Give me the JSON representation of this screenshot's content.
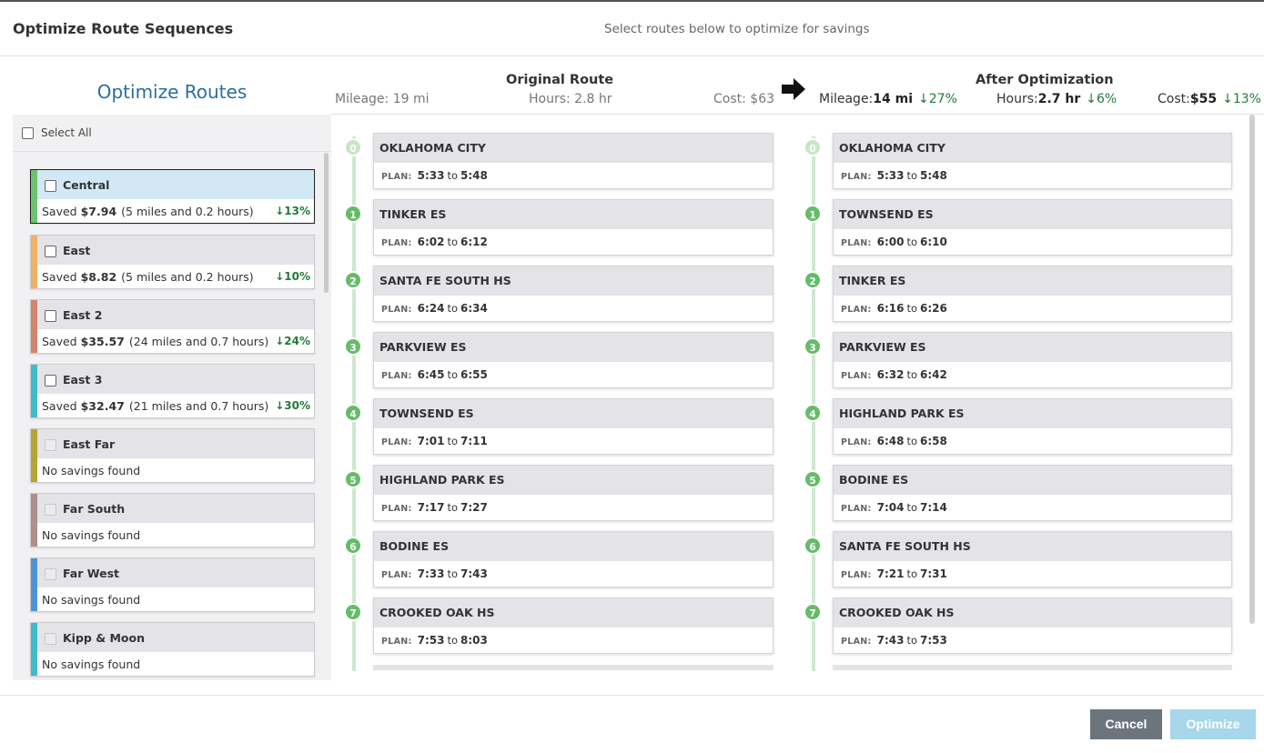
{
  "header": {
    "title": "Optimize Route Sequences",
    "subtitle": "Select routes below to optimize for savings"
  },
  "left": {
    "title": "Optimize Routes",
    "select_all": "Select All",
    "routes": [
      {
        "name": "Central",
        "color": "#6cc46f",
        "saved_label": "Saved",
        "amount": "$7.94",
        "details": "(5 miles and 0.2 hours)",
        "pct": "13%",
        "selected": true,
        "enabled": true
      },
      {
        "name": "East",
        "color": "#f2b066",
        "saved_label": "Saved",
        "amount": "$8.82",
        "details": "(5 miles and 0.2 hours)",
        "pct": "10%",
        "selected": false,
        "enabled": true
      },
      {
        "name": "East 2",
        "color": "#d4846a",
        "saved_label": "Saved",
        "amount": "$35.57",
        "details": "(24 miles and 0.7 hours)",
        "pct": "24%",
        "selected": false,
        "enabled": true
      },
      {
        "name": "East 3",
        "color": "#3fbccc",
        "saved_label": "Saved",
        "amount": "$32.47",
        "details": "(21 miles and 0.7 hours)",
        "pct": "30%",
        "selected": false,
        "enabled": true
      },
      {
        "name": "East Far",
        "color": "#b5a532",
        "no_savings": "No savings found",
        "enabled": false
      },
      {
        "name": "Far South",
        "color": "#ad8f8c",
        "no_savings": "No savings found",
        "enabled": false
      },
      {
        "name": "Far West",
        "color": "#4e93d6",
        "no_savings": "No savings found",
        "enabled": false
      },
      {
        "name": "Kipp & Moon",
        "color": "#3fbccc",
        "no_savings": "No savings found",
        "enabled": false
      }
    ]
  },
  "original": {
    "title": "Original Route",
    "mileage": "Mileage: 19 mi",
    "hours": "Hours: 2.8 hr",
    "cost": "Cost: $63",
    "stops": [
      {
        "num": "0",
        "name": "OKLAHOMA CITY",
        "from": "5:33",
        "to": "5:48"
      },
      {
        "num": "1",
        "name": "TINKER ES",
        "from": "6:02",
        "to": "6:12"
      },
      {
        "num": "2",
        "name": "SANTA FE SOUTH HS",
        "from": "6:24",
        "to": "6:34"
      },
      {
        "num": "3",
        "name": "PARKVIEW ES",
        "from": "6:45",
        "to": "6:55"
      },
      {
        "num": "4",
        "name": "TOWNSEND ES",
        "from": "7:01",
        "to": "7:11"
      },
      {
        "num": "5",
        "name": "HIGHLAND PARK ES",
        "from": "7:17",
        "to": "7:27"
      },
      {
        "num": "6",
        "name": "BODINE ES",
        "from": "7:33",
        "to": "7:43"
      },
      {
        "num": "7",
        "name": "CROOKED OAK HS",
        "from": "7:53",
        "to": "8:03"
      }
    ]
  },
  "optimized": {
    "title": "After Optimization",
    "mileage_label": "Mileage:",
    "mileage_value": "14 mi",
    "mileage_pct": "27%",
    "hours_label": "Hours:",
    "hours_value": "2.7 hr",
    "hours_pct": "6%",
    "cost_label": "Cost:",
    "cost_value": "$55",
    "cost_pct": "13%",
    "stops": [
      {
        "num": "0",
        "name": "OKLAHOMA CITY",
        "from": "5:33",
        "to": "5:48"
      },
      {
        "num": "1",
        "name": "TOWNSEND ES",
        "from": "6:00",
        "to": "6:10"
      },
      {
        "num": "2",
        "name": "TINKER ES",
        "from": "6:16",
        "to": "6:26"
      },
      {
        "num": "3",
        "name": "PARKVIEW ES",
        "from": "6:32",
        "to": "6:42"
      },
      {
        "num": "4",
        "name": "HIGHLAND PARK ES",
        "from": "6:48",
        "to": "6:58"
      },
      {
        "num": "5",
        "name": "BODINE ES",
        "from": "7:04",
        "to": "7:14"
      },
      {
        "num": "6",
        "name": "SANTA FE SOUTH HS",
        "from": "7:21",
        "to": "7:31"
      },
      {
        "num": "7",
        "name": "CROOKED OAK HS",
        "from": "7:43",
        "to": "7:53"
      }
    ]
  },
  "plan_label": "PLAN:",
  "to_label": "to",
  "buttons": {
    "cancel": "Cancel",
    "optimize": "Optimize"
  },
  "icons": {
    "down_arrow": "arrow-down-icon",
    "right_arrow": "arrow-right-icon"
  },
  "colors": {
    "accent_blue": "#2a6f9f",
    "savings_green": "#1f7a3a",
    "timeline_green": "#66bb6a"
  }
}
